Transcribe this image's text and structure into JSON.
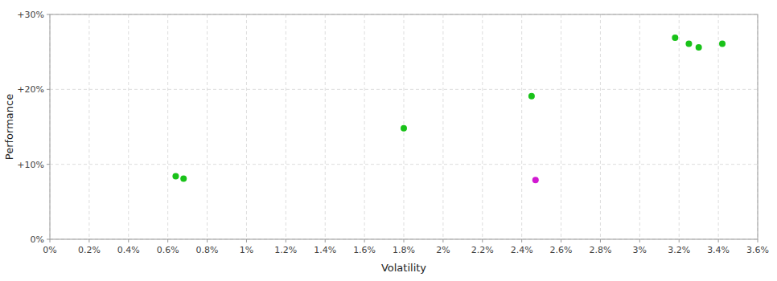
{
  "chart_data": {
    "type": "scatter",
    "xlabel": "Volatility",
    "ylabel": "Performance",
    "xlim": [
      0,
      0.036
    ],
    "ylim": [
      0,
      0.3
    ],
    "xticks": [
      {
        "value": 0,
        "label": "0%"
      },
      {
        "value": 0.002,
        "label": "0.2%"
      },
      {
        "value": 0.004,
        "label": "0.4%"
      },
      {
        "value": 0.006,
        "label": "0.6%"
      },
      {
        "value": 0.008,
        "label": "0.8%"
      },
      {
        "value": 0.01,
        "label": "1%"
      },
      {
        "value": 0.012,
        "label": "1.2%"
      },
      {
        "value": 0.014,
        "label": "1.4%"
      },
      {
        "value": 0.016,
        "label": "1.6%"
      },
      {
        "value": 0.018,
        "label": "1.8%"
      },
      {
        "value": 0.02,
        "label": "2%"
      },
      {
        "value": 0.022,
        "label": "2.2%"
      },
      {
        "value": 0.024,
        "label": "2.4%"
      },
      {
        "value": 0.026,
        "label": "2.6%"
      },
      {
        "value": 0.028,
        "label": "2.8%"
      },
      {
        "value": 0.03,
        "label": "3%"
      },
      {
        "value": 0.032,
        "label": "3.2%"
      },
      {
        "value": 0.034,
        "label": "3.4%"
      },
      {
        "value": 0.036,
        "label": "3.6%"
      }
    ],
    "yticks": [
      {
        "value": 0,
        "label": "0%"
      },
      {
        "value": 0.1,
        "label": "+10%"
      },
      {
        "value": 0.2,
        "label": "+20%"
      },
      {
        "value": 0.3,
        "label": "+30%"
      }
    ],
    "grid": true,
    "series": [
      {
        "color": "#00bb00",
        "x": [
          0.0064,
          0.0068,
          0.018,
          0.0245,
          0.0318,
          0.0325,
          0.033,
          0.0342
        ],
        "values": [
          0.084,
          0.081,
          0.148,
          0.191,
          0.269,
          0.261,
          0.256,
          0.261
        ]
      },
      {
        "color": "#cc00cc",
        "x": [
          0.0247
        ],
        "values": [
          0.079
        ]
      }
    ]
  }
}
